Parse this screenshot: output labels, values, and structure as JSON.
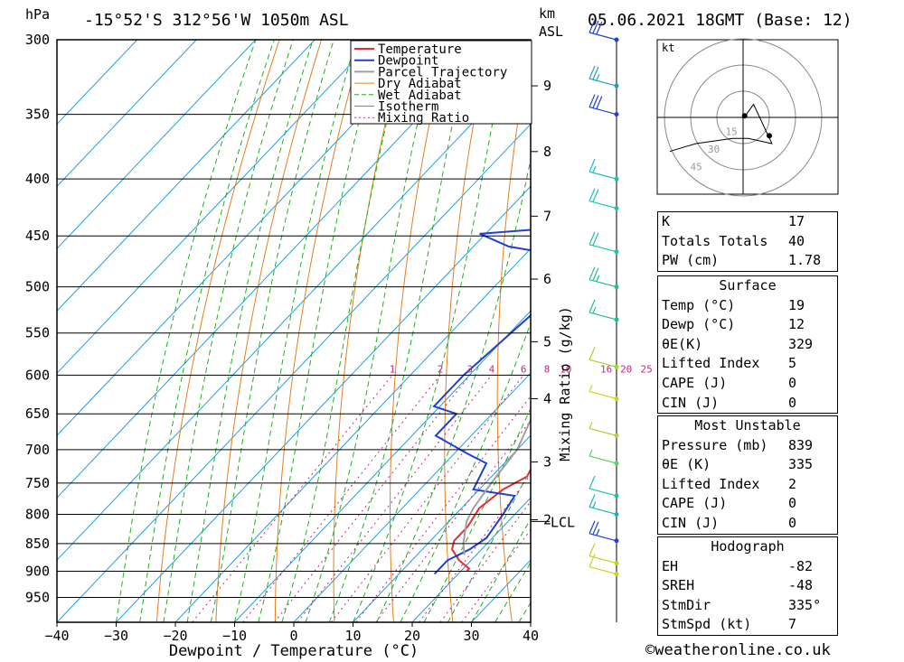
{
  "header": {
    "units_left": "hPa",
    "location": "-15°52'S  312°56'W  1050m  ASL",
    "units_km": "km",
    "units_asl": "ASL",
    "datetime": "05.06.2021  18GMT  (Base: 12)"
  },
  "colors": {
    "temperature": "#e03030",
    "dewpoint": "#2040d0",
    "parcel": "#a0a0a0",
    "dry_adiabat": "#e08020",
    "wet_adiabat": "#20b020",
    "isotherm": "#20a0e0",
    "mixing_ratio": "#d0208a"
  },
  "chart_data": {
    "type": "line",
    "title": "-15°52'S  312°56'W  1050m  ASL",
    "xlabel": "Dewpoint / Temperature (°C)",
    "ylabel": "hPa",
    "xlim": [
      -40,
      40
    ],
    "ylim": [
      1000,
      300
    ],
    "x_ticks": [
      "-40",
      "-30",
      "-20",
      "-10",
      "0",
      "10",
      "20",
      "30",
      "40"
    ],
    "pressure_ticks": [
      "300",
      "350",
      "400",
      "450",
      "500",
      "550",
      "600",
      "650",
      "700",
      "750",
      "800",
      "850",
      "900",
      "950"
    ],
    "pressure_levels": [
      300,
      350,
      400,
      450,
      500,
      550,
      600,
      650,
      700,
      750,
      800,
      850,
      900,
      950
    ],
    "km_ticks": [
      {
        "label": "9",
        "p": 330
      },
      {
        "label": "8",
        "p": 378
      },
      {
        "label": "7",
        "p": 432
      },
      {
        "label": "6",
        "p": 492
      },
      {
        "label": "5",
        "p": 560
      },
      {
        "label": "4",
        "p": 630
      },
      {
        "label": "3",
        "p": 718
      },
      {
        "label": "2",
        "p": 809
      }
    ],
    "lcl_label": "LCL",
    "lcl_pressure": 812,
    "mixing_ratio_label": "Mixing Ratio (g/kg)",
    "mixing_ratio_values": [
      "1",
      "2",
      "3",
      "4",
      "6",
      "8",
      "10",
      "16",
      "20",
      "25"
    ],
    "legend": [
      "Temperature",
      "Dewpoint",
      "Parcel Trajectory",
      "Dry Adiabat",
      "Wet Adiabat",
      "Isotherm",
      "Mixing Ratio"
    ],
    "legend_position": "top-right",
    "series": [
      {
        "name": "Temperature",
        "points": [
          [
            300,
            -7
          ],
          [
            320,
            -6
          ],
          [
            340,
            -7
          ],
          [
            360,
            -4
          ],
          [
            380,
            -1
          ],
          [
            400,
            2
          ],
          [
            420,
            5
          ],
          [
            440,
            7
          ],
          [
            450,
            6
          ],
          [
            470,
            5
          ],
          [
            500,
            9
          ],
          [
            520,
            11
          ],
          [
            550,
            12
          ],
          [
            580,
            15
          ],
          [
            610,
            16
          ],
          [
            625,
            18
          ],
          [
            640,
            15
          ],
          [
            660,
            17
          ],
          [
            690,
            16
          ],
          [
            720,
            15
          ],
          [
            740,
            16
          ],
          [
            760,
            14
          ],
          [
            790,
            13
          ],
          [
            820,
            14
          ],
          [
            845,
            14
          ],
          [
            860,
            15
          ],
          [
            880,
            18
          ],
          [
            895,
            21
          ],
          [
            900,
            21
          ]
        ]
      },
      {
        "name": "Dewpoint",
        "points": [
          [
            300,
            -25
          ],
          [
            315,
            -31
          ],
          [
            335,
            -13
          ],
          [
            350,
            -13
          ],
          [
            400,
            -13
          ],
          [
            440,
            -13
          ],
          [
            448,
            -31
          ],
          [
            460,
            -24
          ],
          [
            470,
            -12
          ],
          [
            500,
            -11
          ],
          [
            520,
            -9
          ],
          [
            600,
            -11
          ],
          [
            640,
            -11
          ],
          [
            650,
            -6
          ],
          [
            680,
            -6
          ],
          [
            705,
            2
          ],
          [
            720,
            7
          ],
          [
            760,
            9
          ],
          [
            770,
            17
          ],
          [
            800,
            18
          ],
          [
            840,
            19
          ],
          [
            860,
            18
          ],
          [
            880,
            16
          ],
          [
            905,
            16
          ]
        ]
      },
      {
        "name": "Parcel Trajectory",
        "points": [
          [
            300,
            -33
          ],
          [
            350,
            -25
          ],
          [
            400,
            -18
          ],
          [
            450,
            -11
          ],
          [
            500,
            -5
          ],
          [
            550,
            0
          ],
          [
            600,
            4
          ],
          [
            650,
            7
          ],
          [
            700,
            10
          ],
          [
            750,
            11
          ],
          [
            790,
            12
          ],
          [
            812,
            13
          ],
          [
            850,
            16
          ],
          [
            870,
            18
          ]
        ]
      }
    ],
    "wind_barbs": [
      {
        "p": 300,
        "speed_kt": 30,
        "color": "#2040d0"
      },
      {
        "p": 330,
        "speed_kt": 25,
        "color": "#20a0c0"
      },
      {
        "p": 350,
        "speed_kt": 30,
        "color": "#2040d0"
      },
      {
        "p": 400,
        "speed_kt": 15,
        "color": "#20c0b0"
      },
      {
        "p": 425,
        "speed_kt": 20,
        "color": "#20c0b0"
      },
      {
        "p": 465,
        "speed_kt": 20,
        "color": "#20c0a0"
      },
      {
        "p": 500,
        "speed_kt": 25,
        "color": "#20c090"
      },
      {
        "p": 535,
        "speed_kt": 15,
        "color": "#20c090"
      },
      {
        "p": 590,
        "speed_kt": 10,
        "color": "#b0d020"
      },
      {
        "p": 630,
        "speed_kt": 5,
        "color": "#d0d020"
      },
      {
        "p": 680,
        "speed_kt": 5,
        "color": "#b0d040"
      },
      {
        "p": 720,
        "speed_kt": 5,
        "color": "#60d060"
      },
      {
        "p": 770,
        "speed_kt": 10,
        "color": "#20c0b0"
      },
      {
        "p": 800,
        "speed_kt": 15,
        "color": "#20b0c0"
      },
      {
        "p": 845,
        "speed_kt": 25,
        "color": "#2040d0"
      },
      {
        "p": 885,
        "speed_kt": 10,
        "color": "#c0d020"
      },
      {
        "p": 905,
        "speed_kt": 10,
        "color": "#d0d020"
      }
    ]
  },
  "hodograph": {
    "unit": "kt",
    "ring_labels": [
      "15",
      "30",
      "45"
    ],
    "trace": [
      [
        0.5,
        0.4
      ],
      [
        2,
        2.5
      ],
      [
        5.5,
        -5
      ],
      [
        1,
        -4
      ],
      [
        -2,
        -4
      ],
      [
        -9,
        -5
      ],
      [
        -14,
        -6.5
      ]
    ]
  },
  "indices": {
    "rows": [
      {
        "label": "K",
        "value": "17"
      },
      {
        "label": "Totals Totals",
        "value": "40"
      },
      {
        "label": "PW (cm)",
        "value": "1.78"
      }
    ]
  },
  "surface": {
    "title": "Surface",
    "rows": [
      {
        "label": "Temp (°C)",
        "value": "19"
      },
      {
        "label": "Dewp (°C)",
        "value": "12"
      },
      {
        "label": "θE(K)",
        "value": "329"
      },
      {
        "label": "Lifted Index",
        "value": "5"
      },
      {
        "label": "CAPE (J)",
        "value": "0"
      },
      {
        "label": "CIN (J)",
        "value": "0"
      }
    ]
  },
  "most_unstable": {
    "title": "Most Unstable",
    "rows": [
      {
        "label": "Pressure (mb)",
        "value": "839"
      },
      {
        "label": "θE (K)",
        "value": "335"
      },
      {
        "label": "Lifted Index",
        "value": "2"
      },
      {
        "label": "CAPE (J)",
        "value": "0"
      },
      {
        "label": "CIN (J)",
        "value": "0"
      }
    ]
  },
  "hodo_table": {
    "title": "Hodograph",
    "rows": [
      {
        "label": "EH",
        "value": "-82"
      },
      {
        "label": "SREH",
        "value": "-48"
      },
      {
        "label": "StmDir",
        "value": "335°"
      },
      {
        "label": "StmSpd (kt)",
        "value": "7"
      }
    ]
  },
  "copyright": "©weatheronline.co.uk"
}
